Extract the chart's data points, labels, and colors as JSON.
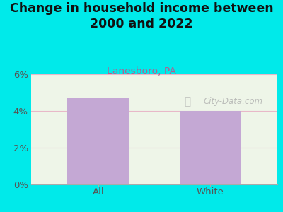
{
  "title": "Change in household income between\n2000 and 2022",
  "subtitle": "Lanesboro, PA",
  "categories": [
    "All",
    "White"
  ],
  "values": [
    4.7,
    4.0
  ],
  "bar_color": "#c4a8d4",
  "title_fontsize": 12.5,
  "title_fontweight": "bold",
  "subtitle_fontsize": 10,
  "subtitle_color": "#b06090",
  "tick_label_fontsize": 9.5,
  "tick_color": "#555555",
  "ylim": [
    0,
    6
  ],
  "yticks": [
    0,
    2,
    4,
    6
  ],
  "ytick_labels": [
    "0%",
    "2%",
    "4%",
    "6%"
  ],
  "bg_outer_color": "#00eaea",
  "bg_plot_color": "#eef5e8",
  "watermark_text": "City-Data.com",
  "watermark_color": "#aaaaaa",
  "grid_color": "#e8b8c8",
  "spine_color": "#aaaaaa",
  "bar_width": 0.55
}
